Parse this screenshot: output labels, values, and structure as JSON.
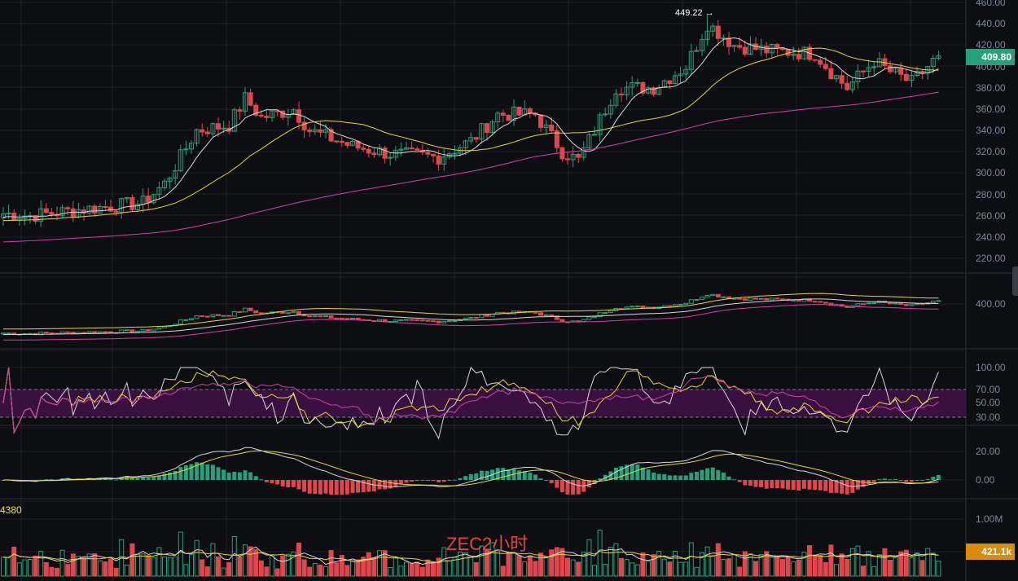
{
  "title": "ZEC2小时",
  "current_price": "409.80",
  "current_volume": "421.1k",
  "high_label": "449.22 →",
  "volume_indicator": "4380",
  "colors": {
    "up": "#26a17b",
    "down": "#e0464b",
    "ma_fast": "#d8d8d8",
    "ma_mid": "#e8d630",
    "ma_slow": "#d33fa8",
    "rsi_band": "#3a1040",
    "price_badge": "#26a17b",
    "vol_badge": "#d98c0a"
  },
  "chart_data": {
    "type": "candlestick",
    "symbol": "ZEC",
    "interval": "2h",
    "price_axis": {
      "ticks": [
        "460.00",
        "440.00",
        "420.00",
        "400.00",
        "380.00",
        "360.00",
        "340.00",
        "320.00",
        "300.00",
        "280.00",
        "260.00",
        "240.00",
        "220.00"
      ],
      "range": [
        220,
        460
      ]
    },
    "close_keypoints": [
      [
        0,
        262
      ],
      [
        5,
        260
      ],
      [
        15,
        266
      ],
      [
        26,
        272
      ],
      [
        30,
        290
      ],
      [
        36,
        340
      ],
      [
        42,
        345
      ],
      [
        45,
        370
      ],
      [
        48,
        352
      ],
      [
        54,
        360
      ],
      [
        57,
        340
      ],
      [
        65,
        325
      ],
      [
        72,
        318
      ],
      [
        81,
        315
      ],
      [
        87,
        330
      ],
      [
        92,
        355
      ],
      [
        99,
        355
      ],
      [
        104,
        320
      ],
      [
        107,
        312
      ],
      [
        110,
        340
      ],
      [
        114,
        380
      ],
      [
        121,
        380
      ],
      [
        127,
        400
      ],
      [
        131,
        440
      ],
      [
        136,
        420
      ],
      [
        142,
        415
      ],
      [
        151,
        412
      ],
      [
        154,
        395
      ],
      [
        157,
        380
      ],
      [
        162,
        405
      ],
      [
        165,
        395
      ],
      [
        169,
        385
      ],
      [
        174,
        409.8
      ]
    ],
    "high": 449.22,
    "overlay_axis": {
      "ticks": [
        "400.00"
      ]
    },
    "rsi_axis": {
      "ticks": [
        "100.00",
        "70.00",
        "50.00",
        "30.00"
      ]
    },
    "macd_axis": {
      "ticks": [
        "20.00",
        "0.00"
      ]
    },
    "volume_axis": {
      "ticks": [
        "1.00M"
      ]
    }
  }
}
